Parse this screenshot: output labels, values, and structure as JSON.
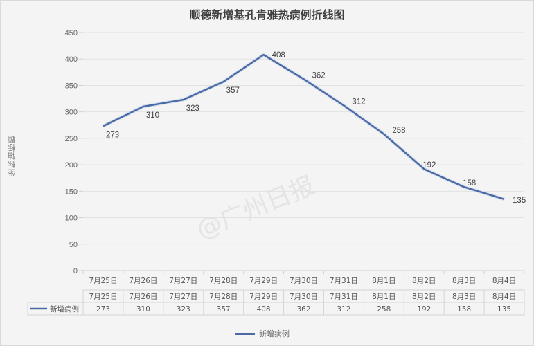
{
  "chart_data": {
    "type": "line",
    "title": "顺德新增基孔肯雅热病例折线图",
    "xlabel": "",
    "ylabel": "坐标轴标题",
    "ylim": [
      0,
      450
    ],
    "yticks": [
      0,
      50,
      100,
      150,
      200,
      250,
      300,
      350,
      400,
      450
    ],
    "grid": true,
    "legend_position": "bottom",
    "categories": [
      "7月25日",
      "7月26日",
      "7月27日",
      "7月28日",
      "7月29日",
      "7月30日",
      "7月31日",
      "8月1日",
      "8月2日",
      "8月3日",
      "8月4日"
    ],
    "series": [
      {
        "name": "新增病例",
        "color": "#4a6aa5",
        "values": [
          273,
          310,
          323,
          357,
          408,
          362,
          312,
          258,
          192,
          158,
          135
        ]
      }
    ],
    "data_table": true
  },
  "watermark": "@广州日报",
  "legend": {
    "label": "新增病例"
  },
  "table": {
    "series_label": "新增病例"
  }
}
